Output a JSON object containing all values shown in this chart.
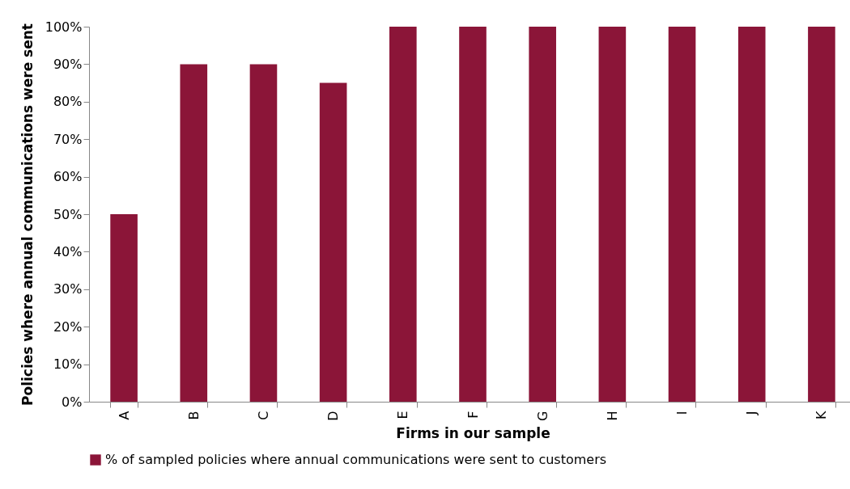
{
  "chart_data": {
    "type": "bar",
    "xlabel": "Firms in our sample",
    "ylabel": "Policies where annual communications were sent",
    "categories": [
      "A",
      "B",
      "C",
      "D",
      "E",
      "F",
      "G",
      "H",
      "I",
      "J",
      "K"
    ],
    "series": [
      {
        "name": "% of sampled policies where annual communications were sent to customers",
        "color": "#8b1538",
        "values": [
          50,
          90,
          90,
          85,
          100,
          100,
          100,
          100,
          100,
          100,
          100
        ]
      }
    ],
    "ylim": [
      0,
      100
    ],
    "yticks": [
      {
        "value": 0,
        "label": "0%"
      },
      {
        "value": 10,
        "label": "10%"
      },
      {
        "value": 20,
        "label": "20%"
      },
      {
        "value": 30,
        "label": "30%"
      },
      {
        "value": 40,
        "label": "40%"
      },
      {
        "value": 50,
        "label": "50%"
      },
      {
        "value": 60,
        "label": "60%"
      },
      {
        "value": 70,
        "label": "70%"
      },
      {
        "value": 80,
        "label": "80%"
      },
      {
        "value": 90,
        "label": "90%"
      },
      {
        "value": 100,
        "label": "100%"
      }
    ],
    "grid": false,
    "legend": "bottom"
  }
}
